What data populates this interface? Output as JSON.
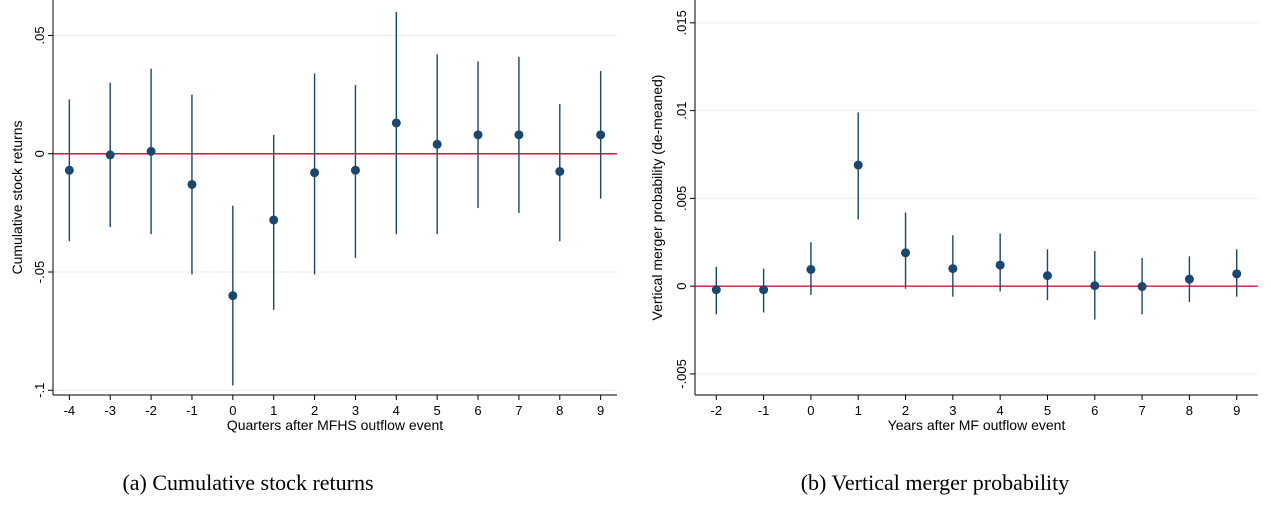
{
  "chart_data": [
    {
      "type": "scatter",
      "caption": "(a) Cumulative stock returns",
      "xlabel": "Quarters after MFHS outflow event",
      "ylabel": "Cumulative stock returns",
      "xlim": [
        -4.4,
        9.4
      ],
      "ylim": [
        -0.102,
        0.065
      ],
      "x_ticks": [
        -4,
        -3,
        -2,
        -1,
        0,
        1,
        2,
        3,
        4,
        5,
        6,
        7,
        8,
        9
      ],
      "y_ticks": [
        -0.1,
        -0.05,
        0,
        0.05
      ],
      "y_tick_labels": [
        "-.1",
        "-.05",
        "0",
        ".05"
      ],
      "grid": "horizontal",
      "reference_line": 0,
      "reference_line_color": "#e0103a",
      "marker_color": "#1a476f",
      "series": [
        {
          "x": [
            -4,
            -3,
            -2,
            -1,
            0,
            1,
            2,
            3,
            4,
            5,
            6,
            7,
            8,
            9
          ],
          "estimate": [
            -0.007,
            -0.0005,
            0.001,
            -0.013,
            -0.06,
            -0.028,
            -0.008,
            -0.007,
            0.013,
            0.004,
            0.008,
            0.008,
            -0.0075,
            0.008
          ],
          "ci_low": [
            -0.037,
            -0.031,
            -0.034,
            -0.051,
            -0.098,
            -0.066,
            -0.051,
            -0.044,
            -0.034,
            -0.034,
            -0.023,
            -0.025,
            -0.037,
            -0.019
          ],
          "ci_high": [
            0.023,
            0.03,
            0.036,
            0.025,
            -0.022,
            0.008,
            0.034,
            0.029,
            0.06,
            0.042,
            0.039,
            0.041,
            0.021,
            0.035
          ]
        }
      ]
    },
    {
      "type": "scatter",
      "caption": "(b) Vertical merger probability",
      "xlabel": "Years after MF outflow event",
      "ylabel": "Vertical merger probability (de-meaned)",
      "xlim": [
        -2.45,
        9.45
      ],
      "ylim": [
        -0.0062,
        0.0163
      ],
      "x_ticks": [
        -2,
        -1,
        0,
        1,
        2,
        3,
        4,
        5,
        6,
        7,
        8,
        9
      ],
      "y_ticks": [
        -0.005,
        0,
        0.005,
        0.01,
        0.015
      ],
      "y_tick_labels": [
        "-.005",
        "0",
        ".005",
        ".01",
        ".015"
      ],
      "grid": "horizontal",
      "reference_line": 0,
      "reference_line_color": "#e0103a",
      "marker_color": "#1a476f",
      "series": [
        {
          "x": [
            -2,
            -1,
            0,
            1,
            2,
            3,
            4,
            5,
            6,
            7,
            8,
            9
          ],
          "estimate": [
            -0.0002,
            -0.0002,
            0.00095,
            0.0069,
            0.0019,
            0.001,
            0.0012,
            0.0006,
            3e-05,
            -2e-05,
            0.0004,
            0.0007
          ],
          "ci_low": [
            -0.0016,
            -0.0015,
            -0.0005,
            0.0038,
            -0.00015,
            -0.0006,
            -0.0003,
            -0.0008,
            -0.0019,
            -0.0016,
            -0.0009,
            -0.0006
          ],
          "ci_high": [
            0.0011,
            0.001,
            0.0025,
            0.0099,
            0.0042,
            0.0029,
            0.003,
            0.0021,
            0.002,
            0.0016,
            0.0017,
            0.0021
          ]
        }
      ]
    }
  ]
}
